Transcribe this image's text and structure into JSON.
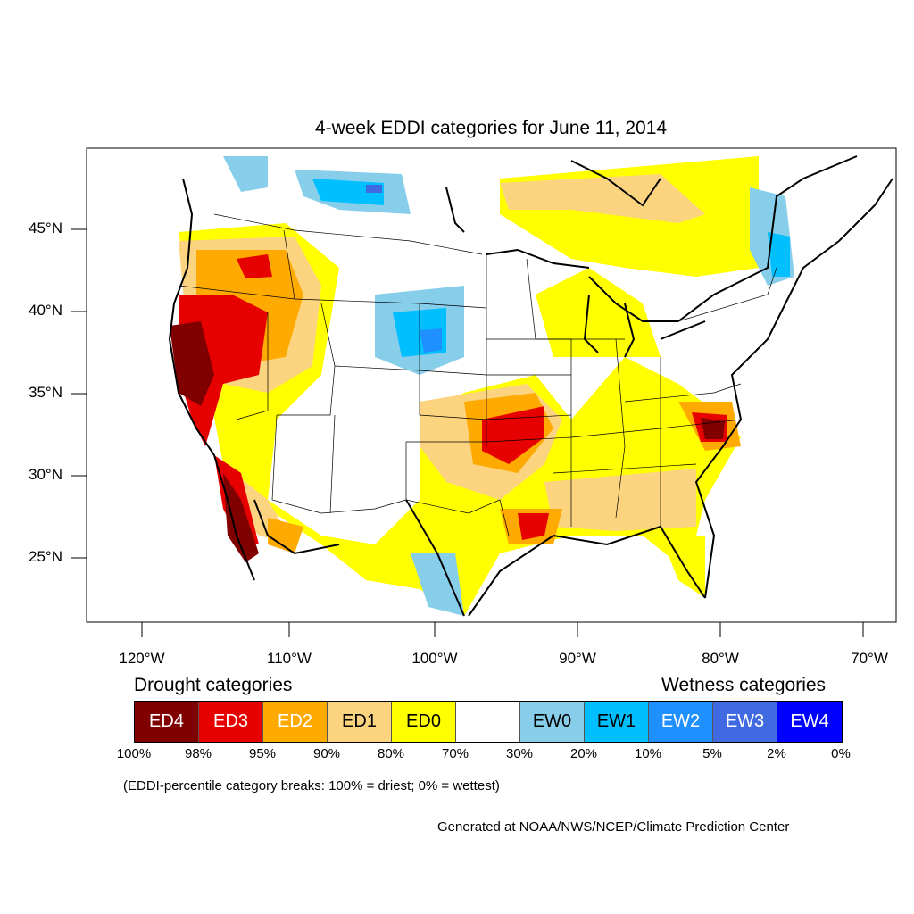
{
  "title": "4-week EDDI categories for June 11, 2014",
  "lat_labels": [
    "45°N",
    "40°N",
    "35°N",
    "30°N",
    "25°N"
  ],
  "lon_labels": [
    "120°W",
    "110°W",
    "100°W",
    "90°W",
    "80°W",
    "70°W"
  ],
  "legend": {
    "drought_heading": "Drought categories",
    "wetness_heading": "Wetness categories",
    "categories": [
      {
        "label": "ED4",
        "color": "#800000",
        "text_color": "#ffffff"
      },
      {
        "label": "ED3",
        "color": "#e60000",
        "text_color": "#ffffff"
      },
      {
        "label": "ED2",
        "color": "#ffaa00",
        "text_color": "#ffffff"
      },
      {
        "label": "ED1",
        "color": "#fcd37f",
        "text_color": "#000000"
      },
      {
        "label": "ED0",
        "color": "#ffff00",
        "text_color": "#000000"
      },
      {
        "label": "",
        "color": "#ffffff",
        "text_color": "#000000"
      },
      {
        "label": "EW0",
        "color": "#87ceeb",
        "text_color": "#000000"
      },
      {
        "label": "EW1",
        "color": "#00bfff",
        "text_color": "#000000"
      },
      {
        "label": "EW2",
        "color": "#1e90ff",
        "text_color": "#ffffff"
      },
      {
        "label": "EW3",
        "color": "#4169e1",
        "text_color": "#ffffff"
      },
      {
        "label": "EW4",
        "color": "#0000ff",
        "text_color": "#ffffff"
      }
    ],
    "percent_breaks": [
      "100%",
      "98%",
      "95%",
      "90%",
      "80%",
      "70%",
      "30%",
      "20%",
      "10%",
      "5%",
      "2%",
      "0%"
    ]
  },
  "note": "(EDDI-percentile category breaks: 100% = driest; 0% = wettest)",
  "credit": "Generated at NOAA/NWS/NCEP/Climate Prediction Center"
}
